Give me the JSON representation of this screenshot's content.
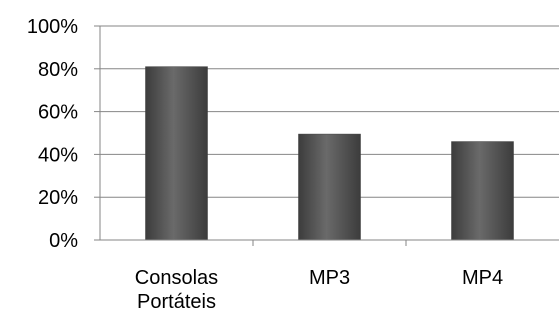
{
  "chart_data": {
    "type": "bar",
    "title": "",
    "xlabel": "",
    "ylabel": "",
    "categories": [
      [
        "Consolas",
        "Portáteis"
      ],
      [
        "MP3"
      ],
      [
        "MP4"
      ]
    ],
    "values": [
      81,
      49.5,
      46
    ],
    "ylim": [
      0,
      100
    ],
    "yticks": [
      0,
      20,
      40,
      60,
      80,
      100
    ],
    "ytick_labels": [
      "0%",
      "20%",
      "40%",
      "60%",
      "80%",
      "100%"
    ],
    "grid": true,
    "legend": "none",
    "colors": {
      "bar_top": "#4a4a4a",
      "bar_mid": "#6e6e6e",
      "bar_edge": "#3a3a3a",
      "gridline": "#868686",
      "axis": "#868686"
    }
  }
}
